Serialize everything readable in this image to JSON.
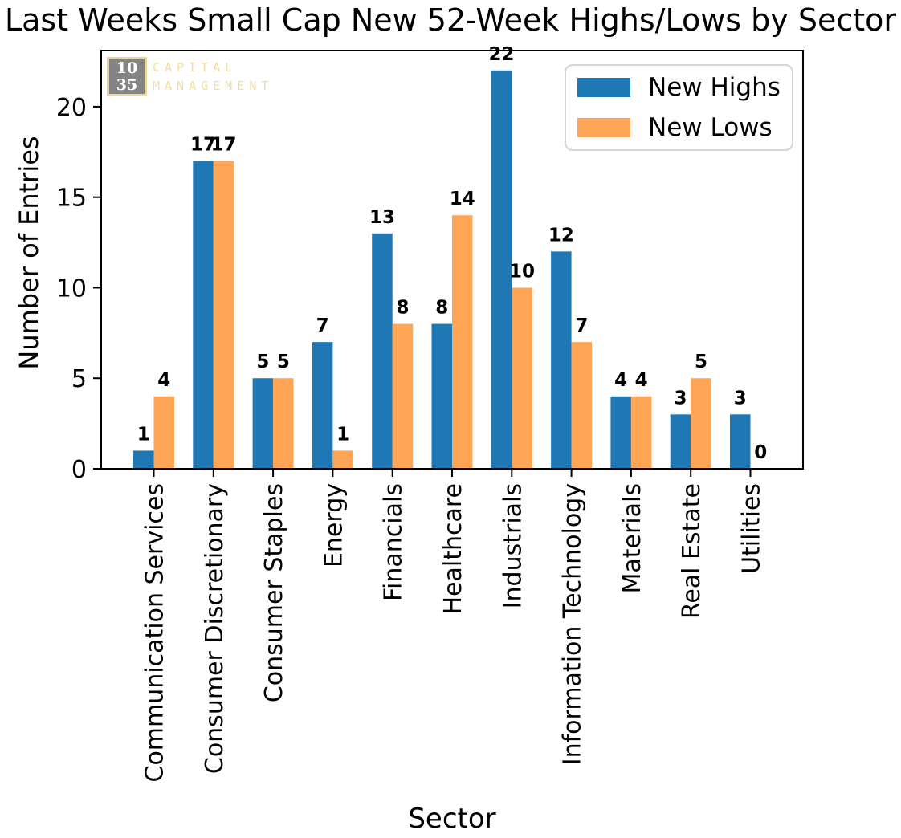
{
  "chart_data": {
    "type": "bar",
    "title": "Last Weeks Small Cap New 52-Week Highs/Lows by Sector",
    "xlabel": "Sector",
    "ylabel": "Number of Entries",
    "categories": [
      "Communication Services",
      "Consumer Discretionary",
      "Consumer Staples",
      "Energy",
      "Financials",
      "Healthcare",
      "Industrials",
      "Information Technology",
      "Materials",
      "Real Estate",
      "Utilities"
    ],
    "series": [
      {
        "name": "New Highs",
        "color": "#1f77b4",
        "values": [
          1,
          17,
          5,
          7,
          13,
          8,
          22,
          12,
          4,
          3,
          3
        ]
      },
      {
        "name": "New Lows",
        "color": "#ffa556",
        "values": [
          4,
          17,
          5,
          1,
          8,
          14,
          10,
          7,
          4,
          5,
          0
        ]
      }
    ],
    "yticks": [
      0,
      5,
      10,
      15,
      20
    ],
    "ylim": [
      0,
      23.1
    ],
    "grid": false,
    "bar_value_labels": true,
    "legend_position": "upper right"
  },
  "logo": {
    "box_line1": "10",
    "box_line2": "35",
    "name_line1": "CAPITAL",
    "name_line2": "MANAGEMENT",
    "box_color": "#848484",
    "accent_color": "#ecd79e"
  },
  "colors": {
    "axis": "#000000",
    "text": "#000000",
    "legend_border": "#d5d5d5"
  }
}
